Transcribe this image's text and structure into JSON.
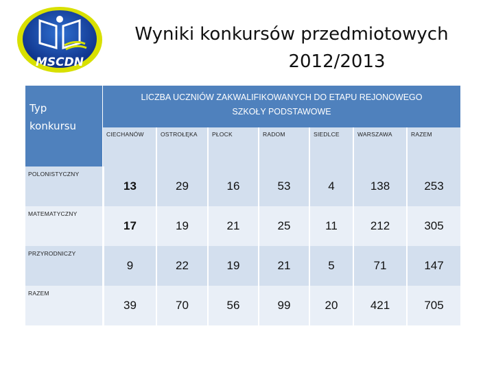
{
  "logo": {
    "text": "MSCDN"
  },
  "title": {
    "line1": "Wyniki konkursów przedmiotowych",
    "line2": "2012/2013"
  },
  "table": {
    "corner_label_1": "Typ",
    "corner_label_2": "konkursu",
    "header_line1": "LICZBA UCZNIÓW ZAKWALIFIKOWANYCH DO ETAPU REJONOWEGO",
    "header_line2": "SZKOŁY PODSTAWOWE",
    "regions": [
      "CIECHANÓW",
      "OSTROŁĘKA",
      "PŁOCK",
      "RADOM",
      "SIEDLCE",
      "WARSZAWA",
      "RAZEM"
    ],
    "rows": [
      {
        "label": "POLONISTYCZNY",
        "values": [
          "13",
          "29",
          "16",
          "53",
          "4",
          "138",
          "253"
        ]
      },
      {
        "label": "MATEMATYCZNY",
        "values": [
          "17",
          "19",
          "21",
          "25",
          "11",
          "212",
          "305"
        ]
      },
      {
        "label": "PRZYRODNICZY",
        "values": [
          "9",
          "22",
          "19",
          "21",
          "5",
          "71",
          "147"
        ]
      },
      {
        "label": "RAZEM",
        "values": [
          "39",
          "70",
          "56",
          "99",
          "20",
          "421",
          "705"
        ]
      }
    ]
  }
}
